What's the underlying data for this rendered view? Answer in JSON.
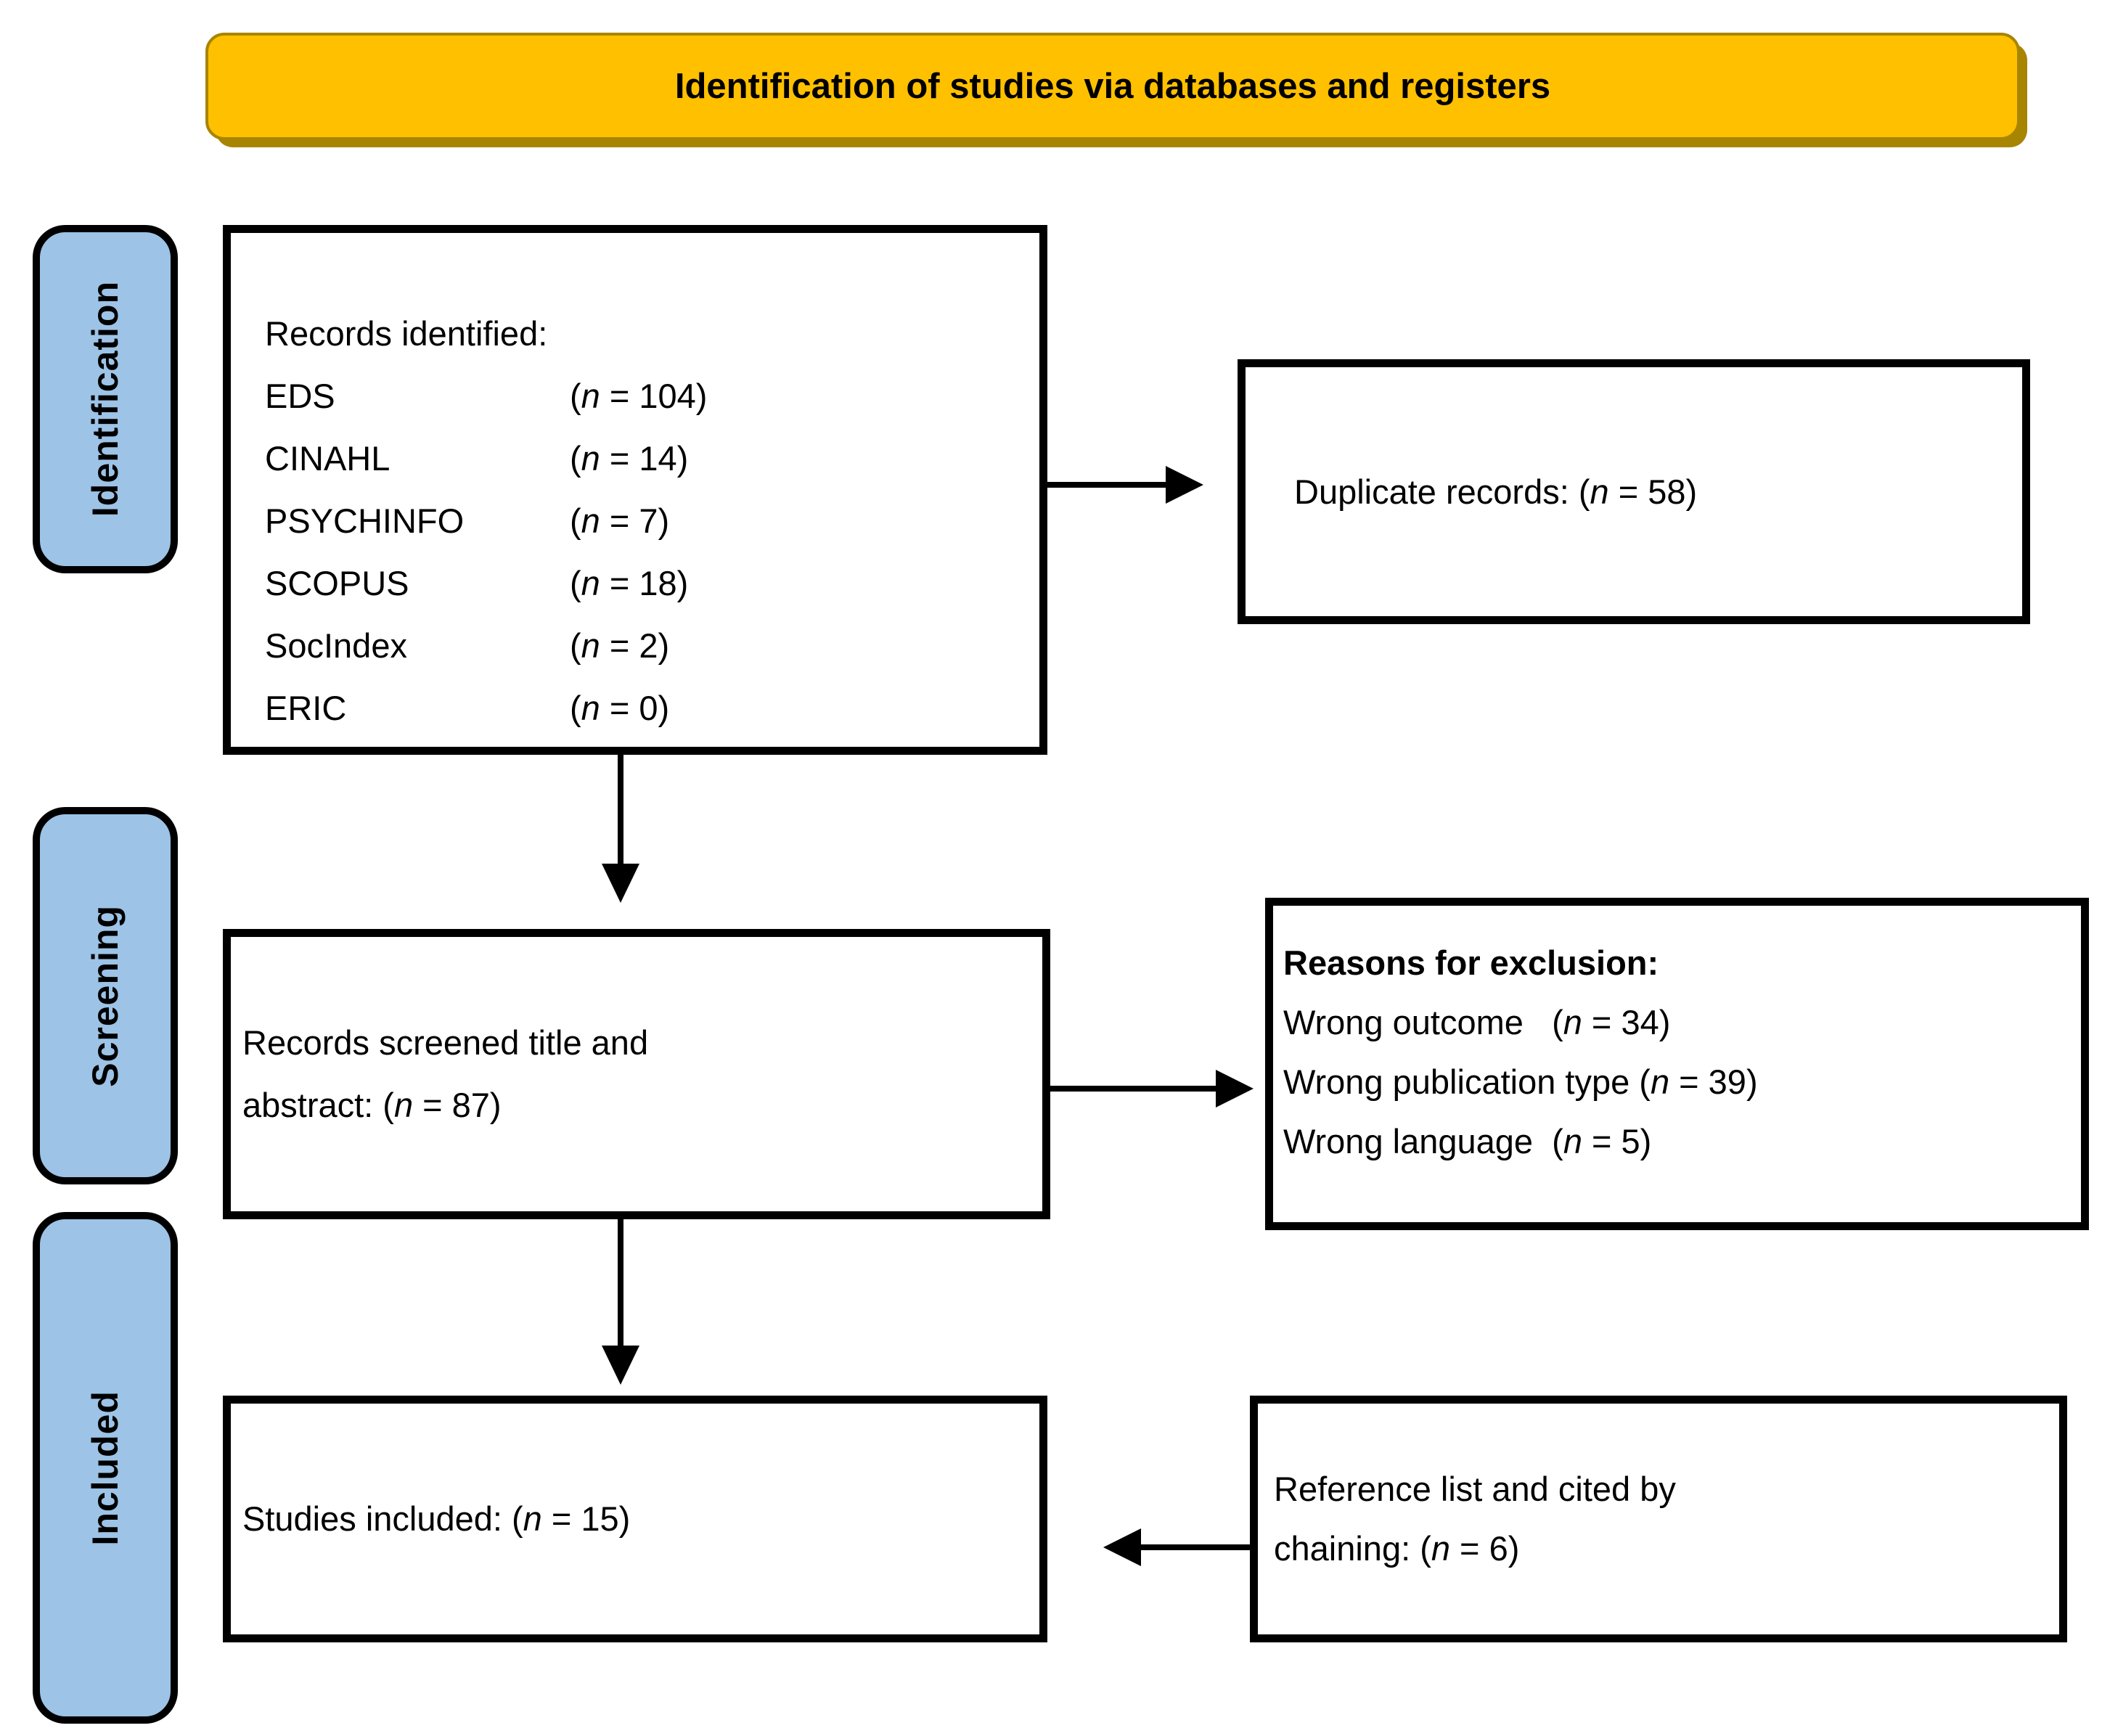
{
  "title": "Identification of studies via databases and registers",
  "colors": {
    "banner_fill": "#FFC000",
    "banner_edge": "#A88500",
    "stage_fill": "#9DC3E6",
    "box_border": "#000000",
    "text": "#000000"
  },
  "stages": [
    {
      "label": "Identification"
    },
    {
      "label": "Screening"
    },
    {
      "label": "Included"
    }
  ],
  "identification_box": {
    "heading": "Records identified:",
    "rows": [
      {
        "db": "EDS",
        "count": "(n = 104)"
      },
      {
        "db": "CINAHL",
        "count": "(n = 14)"
      },
      {
        "db": "PSYCHINFO",
        "count": "(n = 7)"
      },
      {
        "db": "SCOPUS",
        "count": "(n = 18)"
      },
      {
        "db": "SocIndex",
        "count": "(n = 2)"
      },
      {
        "db": "ERIC",
        "count": "(n = 0)"
      }
    ]
  },
  "duplicate_box": {
    "text": "Duplicate records: (n = 58)"
  },
  "screening_box": {
    "text": "Records screened title and\nabstract: (n = 87)"
  },
  "exclusion_box": {
    "heading": "Reasons for exclusion:",
    "lines": [
      "Wrong outcome   (n = 34)",
      "Wrong publication type (n = 39)",
      "Wrong language  (n = 5)"
    ]
  },
  "included_box": {
    "text": "Studies included: (n = 15)"
  },
  "reference_box": {
    "text": "Reference list and cited by\nchaining: (n = 6)"
  }
}
